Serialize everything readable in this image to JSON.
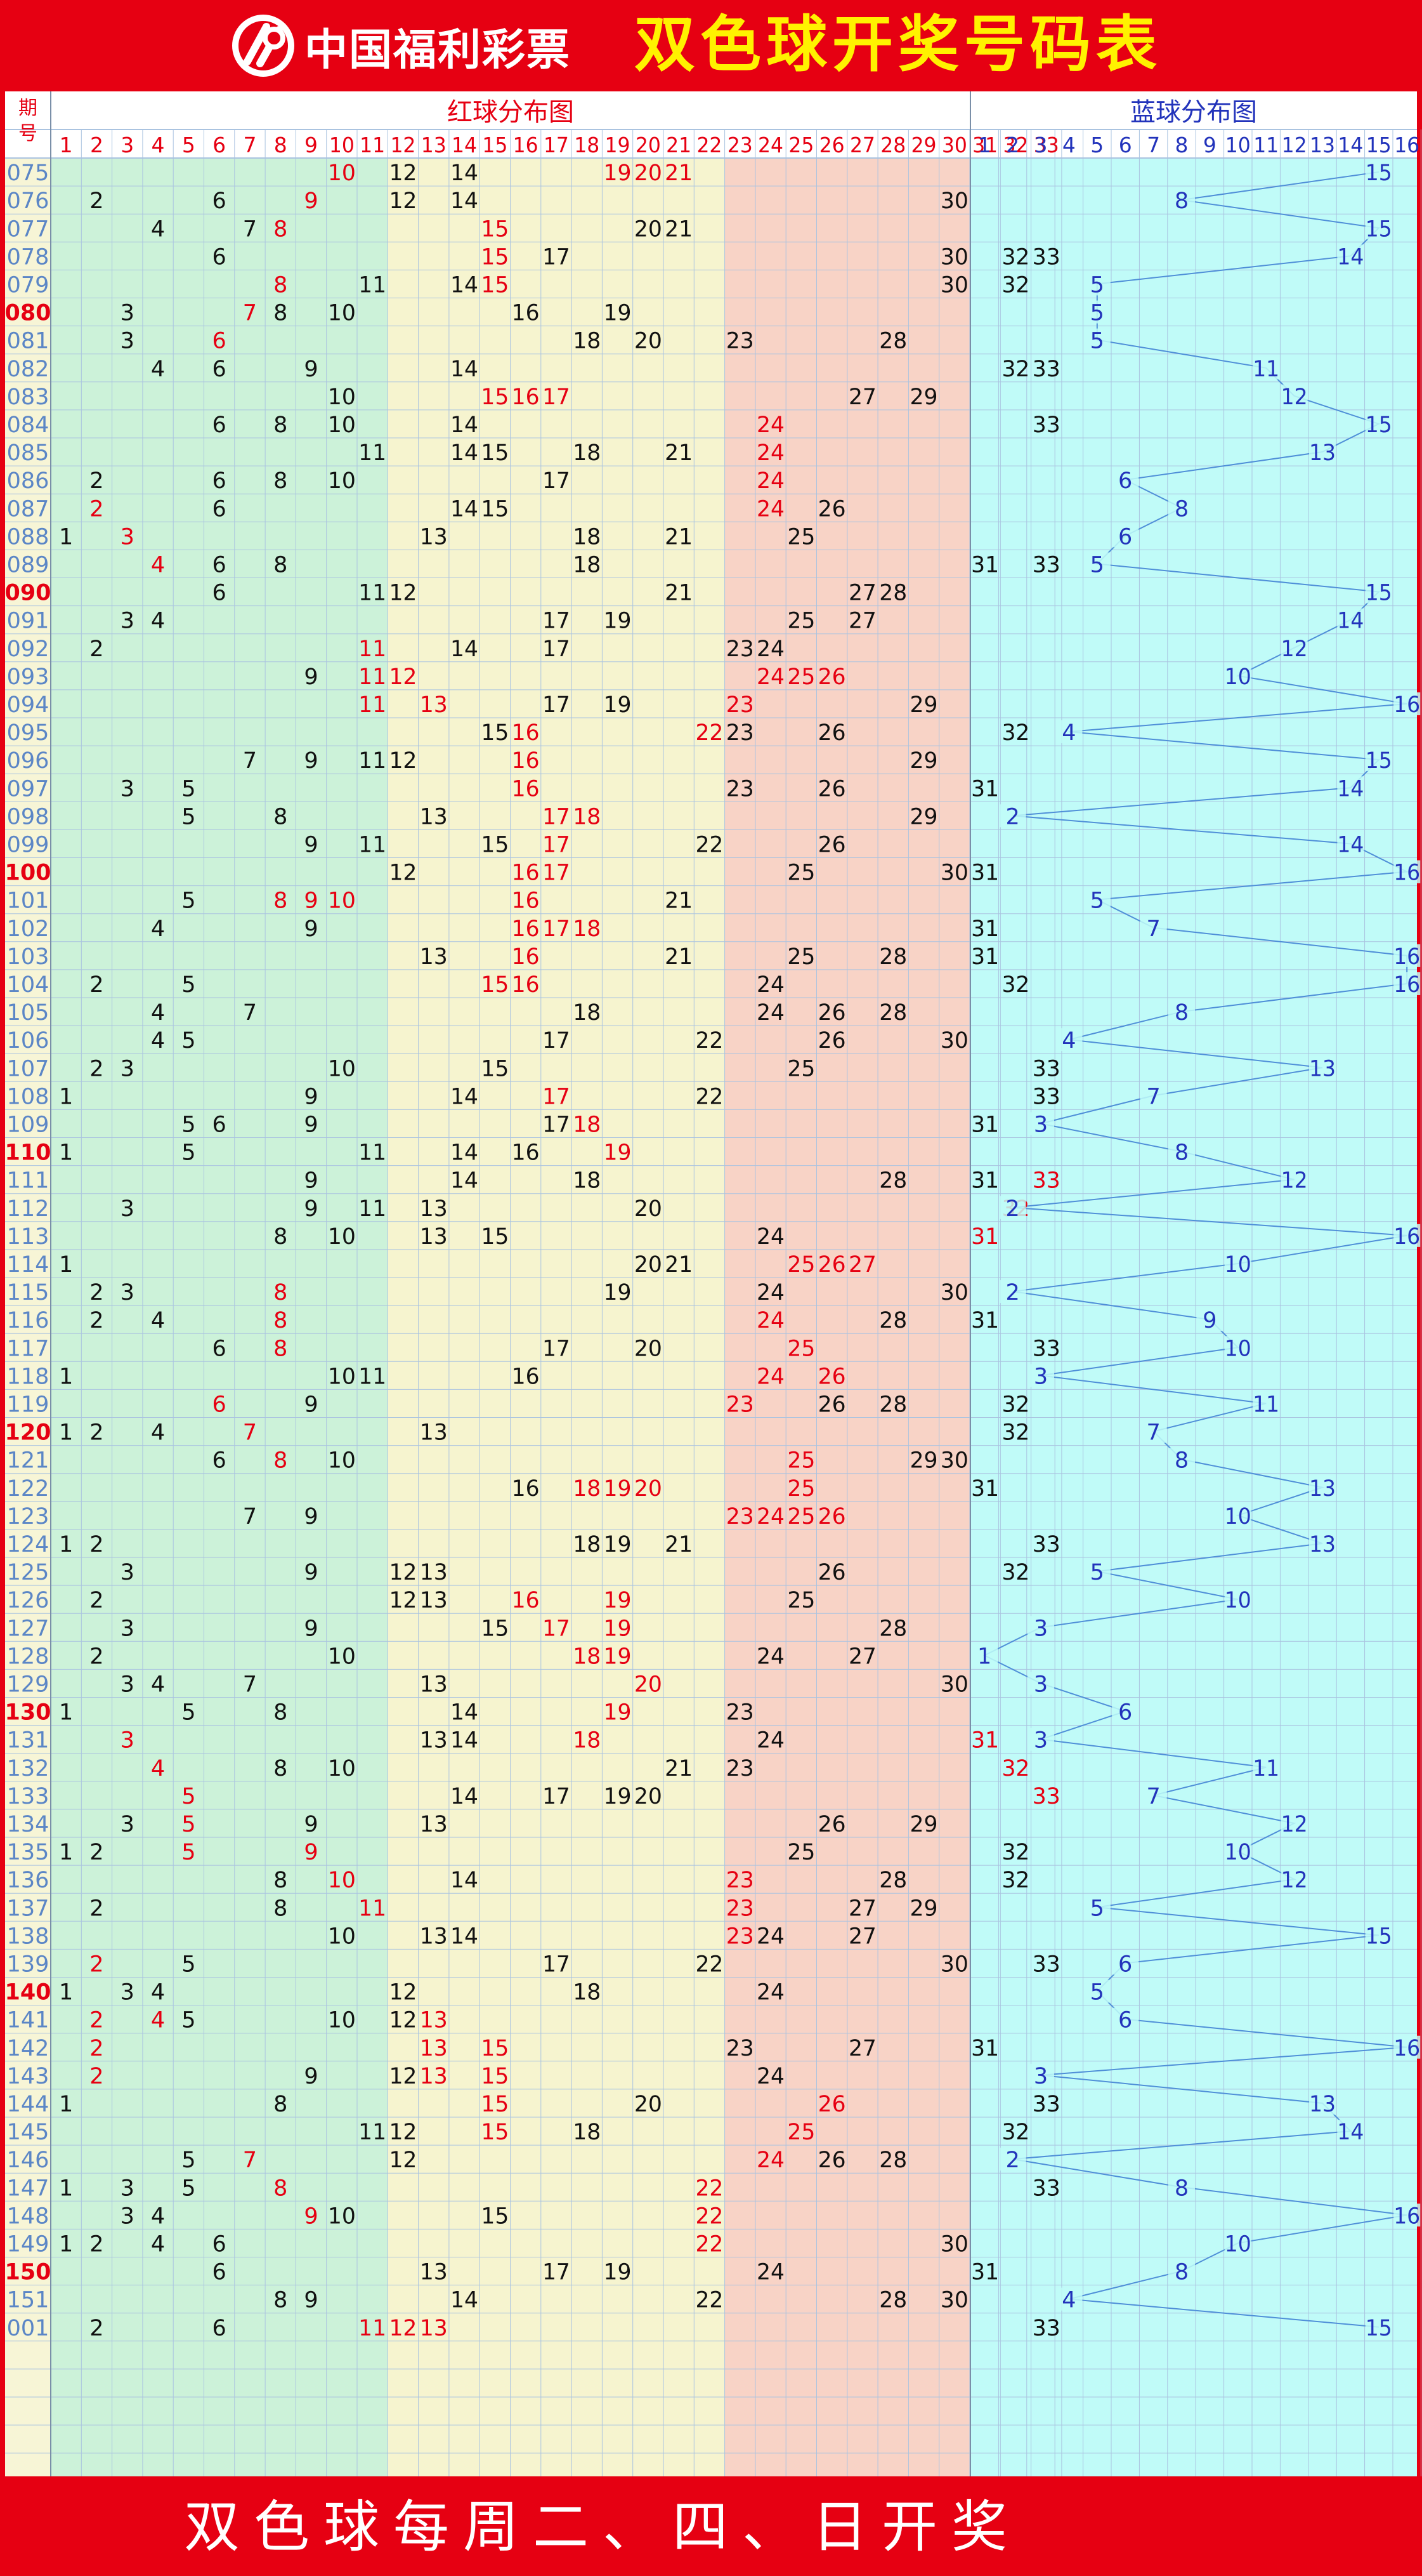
{
  "header": {
    "logo_text": "中国福利彩票",
    "title": "双色球开奖号码表"
  },
  "footer": {
    "text": "双色球每周二、四、日开奖"
  },
  "table": {
    "period_label_1": "期",
    "period_label_2": "号",
    "red_section_title": "红球分布图",
    "blue_section_title": "蓝球分布图"
  },
  "colors": {
    "red_zone_1": "#ccf2d9",
    "red_zone_2": "#f6f4cf",
    "red_zone_3": "#f8d3c6",
    "blue_zone": "#c0fbf8",
    "period_col": "#f7f5d6",
    "grid": "#aac3e0",
    "header_text": "#e60012",
    "blue_text": "#2233bb",
    "line": "#4f8fd8",
    "hot_period": "#e60012",
    "period_text": "#5b86c6"
  },
  "chart_data": {
    "type": "table",
    "title": "双色球开奖号码表",
    "red_columns": [
      "1",
      "2",
      "3",
      "4",
      "5",
      "6",
      "7",
      "8",
      "9",
      "10",
      "11",
      "12",
      "13",
      "14",
      "15",
      "16",
      "17",
      "18",
      "19",
      "20",
      "21",
      "22",
      "23",
      "24",
      "25",
      "26",
      "27",
      "28",
      "29",
      "30",
      "31",
      "32",
      "33"
    ],
    "blue_columns": [
      "1",
      "2",
      "3",
      "4",
      "5",
      "6",
      "7",
      "8",
      "9",
      "10",
      "11",
      "12",
      "13",
      "14",
      "15",
      "16"
    ],
    "draws": [
      {
        "period": "075",
        "red": [
          10,
          12,
          14,
          19,
          20,
          21
        ],
        "blue": 15,
        "hot": [
          10,
          19,
          20,
          21
        ]
      },
      {
        "period": "076",
        "red": [
          2,
          6,
          9,
          12,
          14,
          30
        ],
        "blue": 8,
        "hot": [
          9
        ]
      },
      {
        "period": "077",
        "red": [
          4,
          7,
          8,
          15,
          20,
          21
        ],
        "blue": 15,
        "hot": [
          8,
          15
        ]
      },
      {
        "period": "078",
        "red": [
          6,
          15,
          17,
          30,
          32,
          33
        ],
        "blue": 14,
        "hot": [
          15
        ]
      },
      {
        "period": "079",
        "red": [
          8,
          11,
          14,
          15,
          30,
          32
        ],
        "blue": 5,
        "hot": [
          8,
          15
        ]
      },
      {
        "period": "080",
        "red": [
          3,
          7,
          8,
          10,
          16,
          19
        ],
        "blue": 5,
        "hot": [
          7
        ]
      },
      {
        "period": "081",
        "red": [
          3,
          6,
          18,
          20,
          23,
          28
        ],
        "blue": 5,
        "hot": [
          6
        ]
      },
      {
        "period": "082",
        "red": [
          4,
          6,
          9,
          14,
          32,
          33
        ],
        "blue": 11,
        "hot": []
      },
      {
        "period": "083",
        "red": [
          10,
          15,
          16,
          17,
          27,
          29
        ],
        "blue": 12,
        "hot": [
          15,
          16,
          17
        ]
      },
      {
        "period": "084",
        "red": [
          6,
          8,
          10,
          14,
          24,
          33
        ],
        "blue": 15,
        "hot": [
          24
        ]
      },
      {
        "period": "085",
        "red": [
          11,
          14,
          15,
          18,
          21,
          24
        ],
        "blue": 13,
        "hot": [
          24
        ]
      },
      {
        "period": "086",
        "red": [
          2,
          6,
          8,
          10,
          17,
          24
        ],
        "blue": 6,
        "hot": [
          24
        ]
      },
      {
        "period": "087",
        "red": [
          2,
          6,
          14,
          15,
          24,
          26
        ],
        "blue": 8,
        "hot": [
          2,
          24
        ]
      },
      {
        "period": "088",
        "red": [
          1,
          3,
          13,
          18,
          21,
          25
        ],
        "blue": 6,
        "hot": [
          3
        ]
      },
      {
        "period": "089",
        "red": [
          4,
          6,
          8,
          18,
          31,
          33
        ],
        "blue": 5,
        "hot": [
          4
        ]
      },
      {
        "period": "090",
        "red": [
          6,
          11,
          12,
          21,
          27,
          28
        ],
        "blue": 15,
        "hot": []
      },
      {
        "period": "091",
        "red": [
          3,
          4,
          17,
          19,
          25,
          27
        ],
        "blue": 14,
        "hot": []
      },
      {
        "period": "092",
        "red": [
          2,
          11,
          14,
          17,
          23,
          24
        ],
        "blue": 12,
        "hot": [
          11
        ]
      },
      {
        "period": "093",
        "red": [
          9,
          11,
          12,
          24,
          25,
          26
        ],
        "blue": 10,
        "hot": [
          11,
          12,
          24,
          25,
          26
        ]
      },
      {
        "period": "094",
        "red": [
          11,
          13,
          17,
          19,
          23,
          29
        ],
        "blue": 16,
        "hot": [
          11,
          13,
          23
        ]
      },
      {
        "period": "095",
        "red": [
          15,
          16,
          22,
          23,
          26,
          32
        ],
        "blue": 4,
        "hot": [
          16,
          22
        ]
      },
      {
        "period": "096",
        "red": [
          7,
          9,
          11,
          12,
          16,
          29
        ],
        "blue": 15,
        "hot": [
          16
        ]
      },
      {
        "period": "097",
        "red": [
          3,
          5,
          16,
          23,
          26,
          31
        ],
        "blue": 14,
        "hot": [
          16
        ]
      },
      {
        "period": "098",
        "red": [
          5,
          8,
          13,
          17,
          18,
          29
        ],
        "blue": 2,
        "hot": [
          17,
          18
        ]
      },
      {
        "period": "099",
        "red": [
          9,
          11,
          15,
          17,
          22,
          26
        ],
        "blue": 14,
        "hot": [
          17
        ]
      },
      {
        "period": "100",
        "red": [
          12,
          16,
          17,
          25,
          30,
          31
        ],
        "blue": 16,
        "hot": [
          16,
          17
        ]
      },
      {
        "period": "101",
        "red": [
          5,
          8,
          9,
          10,
          16,
          21
        ],
        "blue": 5,
        "hot": [
          8,
          9,
          10,
          16
        ]
      },
      {
        "period": "102",
        "red": [
          4,
          9,
          16,
          17,
          18,
          31
        ],
        "blue": 7,
        "hot": [
          16,
          17,
          18
        ]
      },
      {
        "period": "103",
        "red": [
          13,
          16,
          21,
          25,
          28,
          31
        ],
        "blue": 16,
        "hot": [
          16
        ]
      },
      {
        "period": "104",
        "red": [
          2,
          5,
          15,
          16,
          24,
          32
        ],
        "blue": 16,
        "hot": [
          15,
          16
        ]
      },
      {
        "period": "105",
        "red": [
          4,
          7,
          18,
          24,
          26,
          28
        ],
        "blue": 8,
        "hot": []
      },
      {
        "period": "106",
        "red": [
          4,
          5,
          17,
          22,
          26,
          30
        ],
        "blue": 4,
        "hot": []
      },
      {
        "period": "107",
        "red": [
          2,
          3,
          10,
          15,
          25,
          33
        ],
        "blue": 13,
        "hot": []
      },
      {
        "period": "108",
        "red": [
          1,
          9,
          14,
          17,
          22,
          33
        ],
        "blue": 7,
        "hot": [
          17
        ]
      },
      {
        "period": "109",
        "red": [
          5,
          6,
          9,
          17,
          18,
          31
        ],
        "blue": 3,
        "hot": [
          18
        ]
      },
      {
        "period": "110",
        "red": [
          1,
          5,
          11,
          14,
          16,
          19
        ],
        "blue": 8,
        "hot": [
          19
        ]
      },
      {
        "period": "111",
        "red": [
          9,
          14,
          18,
          28,
          31,
          33
        ],
        "blue": 12,
        "hot": [
          33
        ]
      },
      {
        "period": "112",
        "red": [
          3,
          9,
          11,
          13,
          20,
          32
        ],
        "blue": 2,
        "hot": [
          32
        ]
      },
      {
        "period": "113",
        "red": [
          8,
          10,
          13,
          15,
          24,
          31
        ],
        "blue": 16,
        "hot": [
          31
        ]
      },
      {
        "period": "114",
        "red": [
          1,
          20,
          21,
          25,
          26,
          27
        ],
        "blue": 10,
        "hot": [
          25,
          26,
          27
        ]
      },
      {
        "period": "115",
        "red": [
          2,
          3,
          8,
          19,
          24,
          30
        ],
        "blue": 2,
        "hot": [
          8
        ]
      },
      {
        "period": "116",
        "red": [
          2,
          4,
          8,
          24,
          28,
          31
        ],
        "blue": 9,
        "hot": [
          8,
          24
        ]
      },
      {
        "period": "117",
        "red": [
          6,
          8,
          17,
          20,
          25,
          33
        ],
        "blue": 10,
        "hot": [
          8,
          25
        ]
      },
      {
        "period": "118",
        "red": [
          1,
          10,
          11,
          16,
          24,
          26
        ],
        "blue": 3,
        "hot": [
          24,
          26
        ]
      },
      {
        "period": "119",
        "red": [
          6,
          9,
          23,
          26,
          28,
          32
        ],
        "blue": 11,
        "hot": [
          6,
          23
        ]
      },
      {
        "period": "120",
        "red": [
          1,
          2,
          4,
          7,
          13,
          32
        ],
        "blue": 7,
        "hot": [
          7
        ]
      },
      {
        "period": "121",
        "red": [
          6,
          8,
          10,
          25,
          29,
          30
        ],
        "blue": 8,
        "hot": [
          8,
          25
        ]
      },
      {
        "period": "122",
        "red": [
          16,
          18,
          19,
          20,
          25,
          31
        ],
        "blue": 13,
        "hot": [
          18,
          19,
          20,
          25
        ]
      },
      {
        "period": "123",
        "red": [
          7,
          9,
          23,
          24,
          25,
          26
        ],
        "blue": 10,
        "hot": [
          23,
          24,
          25,
          26
        ]
      },
      {
        "period": "124",
        "red": [
          1,
          2,
          18,
          19,
          21,
          33
        ],
        "blue": 13,
        "hot": []
      },
      {
        "period": "125",
        "red": [
          3,
          9,
          12,
          13,
          26,
          32
        ],
        "blue": 5,
        "hot": []
      },
      {
        "period": "126",
        "red": [
          2,
          12,
          13,
          16,
          19,
          25
        ],
        "blue": 10,
        "hot": [
          16,
          19
        ]
      },
      {
        "period": "127",
        "red": [
          3,
          9,
          15,
          17,
          19,
          28
        ],
        "blue": 3,
        "hot": [
          17,
          19
        ]
      },
      {
        "period": "128",
        "red": [
          2,
          10,
          18,
          19,
          24,
          27
        ],
        "blue": 1,
        "hot": [
          18,
          19
        ]
      },
      {
        "period": "129",
        "red": [
          3,
          4,
          7,
          13,
          20,
          30
        ],
        "blue": 3,
        "hot": [
          20
        ]
      },
      {
        "period": "130",
        "red": [
          1,
          5,
          8,
          14,
          19,
          23
        ],
        "blue": 6,
        "hot": [
          19
        ]
      },
      {
        "period": "131",
        "red": [
          3,
          13,
          14,
          18,
          24,
          31
        ],
        "blue": 3,
        "hot": [
          3,
          18,
          31
        ]
      },
      {
        "period": "132",
        "red": [
          4,
          8,
          10,
          21,
          23,
          32
        ],
        "blue": 11,
        "hot": [
          4,
          32
        ]
      },
      {
        "period": "133",
        "red": [
          5,
          14,
          17,
          19,
          20,
          33
        ],
        "blue": 7,
        "hot": [
          5,
          33
        ]
      },
      {
        "period": "134",
        "red": [
          3,
          5,
          9,
          13,
          26,
          29
        ],
        "blue": 12,
        "hot": [
          5
        ]
      },
      {
        "period": "135",
        "red": [
          1,
          2,
          5,
          9,
          25,
          32
        ],
        "blue": 10,
        "hot": [
          5,
          9
        ]
      },
      {
        "period": "136",
        "red": [
          8,
          10,
          14,
          23,
          28,
          32
        ],
        "blue": 12,
        "hot": [
          10,
          23
        ]
      },
      {
        "period": "137",
        "red": [
          2,
          8,
          11,
          23,
          27,
          29
        ],
        "blue": 5,
        "hot": [
          11,
          23
        ]
      },
      {
        "period": "138",
        "red": [
          10,
          13,
          14,
          23,
          24,
          27
        ],
        "blue": 15,
        "hot": [
          23
        ]
      },
      {
        "period": "139",
        "red": [
          2,
          5,
          17,
          22,
          30,
          33
        ],
        "blue": 6,
        "hot": [
          2
        ]
      },
      {
        "period": "140",
        "red": [
          1,
          3,
          4,
          12,
          18,
          24
        ],
        "blue": 5,
        "hot": []
      },
      {
        "period": "141",
        "red": [
          2,
          4,
          5,
          10,
          12,
          13
        ],
        "blue": 6,
        "hot": [
          2,
          4,
          13
        ]
      },
      {
        "period": "142",
        "red": [
          2,
          13,
          15,
          23,
          27,
          31
        ],
        "blue": 16,
        "hot": [
          2,
          13,
          15
        ]
      },
      {
        "period": "143",
        "red": [
          2,
          9,
          12,
          13,
          15,
          24
        ],
        "blue": 3,
        "hot": [
          2,
          13,
          15
        ]
      },
      {
        "period": "144",
        "red": [
          1,
          8,
          15,
          20,
          26,
          33
        ],
        "blue": 13,
        "hot": [
          15,
          26
        ]
      },
      {
        "period": "145",
        "red": [
          11,
          12,
          15,
          18,
          25,
          32
        ],
        "blue": 14,
        "hot": [
          15,
          25
        ]
      },
      {
        "period": "146",
        "red": [
          5,
          7,
          12,
          24,
          26,
          28
        ],
        "blue": 2,
        "hot": [
          7,
          24
        ]
      },
      {
        "period": "147",
        "red": [
          1,
          3,
          5,
          8,
          22,
          33
        ],
        "blue": 8,
        "hot": [
          8,
          22
        ]
      },
      {
        "period": "148",
        "red": [
          3,
          4,
          9,
          10,
          15,
          22
        ],
        "blue": 16,
        "hot": [
          9,
          22
        ]
      },
      {
        "period": "149",
        "red": [
          1,
          2,
          4,
          6,
          22,
          30
        ],
        "blue": 10,
        "hot": [
          22
        ]
      },
      {
        "period": "150",
        "red": [
          6,
          13,
          17,
          19,
          24,
          31
        ],
        "blue": 8,
        "hot": []
      },
      {
        "period": "151",
        "red": [
          8,
          9,
          14,
          22,
          28,
          30
        ],
        "blue": 4,
        "hot": []
      },
      {
        "period": "001",
        "red": [
          2,
          6,
          11,
          12,
          13,
          33
        ],
        "blue": 15,
        "hot": [
          11,
          12,
          13
        ]
      }
    ],
    "hot_periods": [
      "080",
      "090",
      "100",
      "110",
      "120",
      "130",
      "140",
      "150"
    ]
  }
}
